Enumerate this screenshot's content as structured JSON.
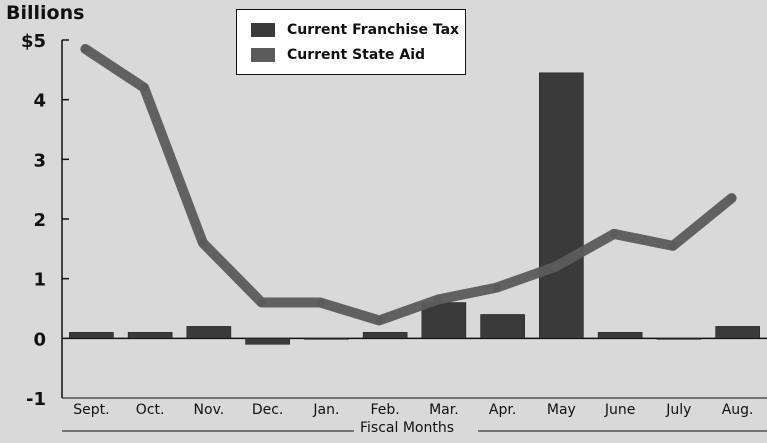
{
  "chart_data": {
    "type": "bar",
    "ylabel": "Billions",
    "xlabel": "Fiscal Months",
    "ylim": [
      -1,
      5
    ],
    "yticks": [
      {
        "value": 5,
        "label": "$5"
      },
      {
        "value": 4,
        "label": "4"
      },
      {
        "value": 3,
        "label": "3"
      },
      {
        "value": 2,
        "label": "2"
      },
      {
        "value": 1,
        "label": "1"
      },
      {
        "value": 0,
        "label": "0"
      },
      {
        "value": -1,
        "label": "-1"
      }
    ],
    "categories": [
      "Sept.",
      "Oct.",
      "Nov.",
      "Dec.",
      "Jan.",
      "Feb.",
      "Mar.",
      "Apr.",
      "May",
      "June",
      "July",
      "Aug."
    ],
    "grid": false,
    "legend_position": "top-center",
    "series": [
      {
        "name": "Current Franchise Tax",
        "type": "bar",
        "color": "#3a3a3a",
        "values": [
          0.1,
          0.1,
          0.2,
          -0.1,
          0.0,
          0.1,
          0.6,
          0.4,
          4.45,
          0.1,
          0.0,
          0.2
        ]
      },
      {
        "name": "Current State Aid",
        "type": "line",
        "color": "#5b5b5b",
        "values": [
          4.85,
          4.2,
          1.6,
          0.6,
          0.6,
          0.3,
          0.65,
          0.85,
          1.2,
          1.75,
          1.55,
          2.35
        ]
      }
    ]
  }
}
